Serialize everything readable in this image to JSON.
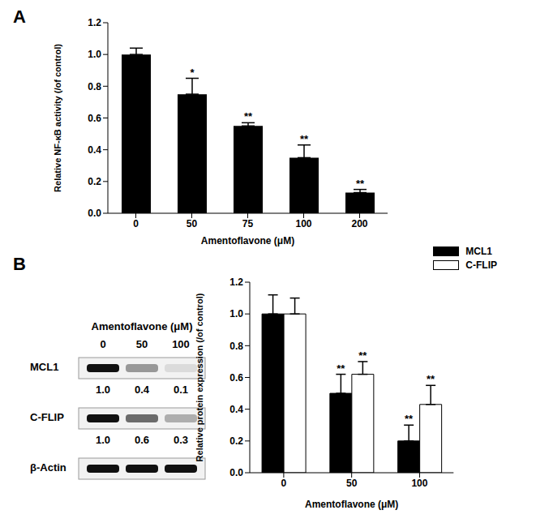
{
  "chart_data": [
    {
      "type": "bar",
      "title": "A",
      "x_label": "Amentoflavone (μM)",
      "y_label": "Relative NF-κB activity (/of control)",
      "categories": [
        "0",
        "50",
        "75",
        "100",
        "200"
      ],
      "values": [
        1.0,
        0.75,
        0.55,
        0.35,
        0.13
      ],
      "errors": [
        0.04,
        0.1,
        0.02,
        0.08,
        0.02
      ],
      "significance": [
        null,
        "*",
        "**",
        "**",
        "**"
      ],
      "color": "#000000",
      "ylim": [
        0,
        1.2
      ],
      "yticks": [
        {
          "value": 0,
          "label": "0.0"
        },
        {
          "value": 0.2,
          "label": "0.2"
        },
        {
          "value": 0.4,
          "label": "0.4"
        },
        {
          "value": 0.6,
          "label": "0.6"
        },
        {
          "value": 0.8,
          "label": "0.8"
        },
        {
          "value": 1.0,
          "label": "1.0"
        },
        {
          "value": 1.2,
          "label": "1.2"
        }
      ]
    },
    {
      "type": "bar",
      "title": "B",
      "x_label": "Amentoflavone (μM)",
      "y_label": "Relative protein expression (/of control)",
      "categories": [
        "0",
        "50",
        "100"
      ],
      "series": [
        {
          "name": "MCL1",
          "color": "#000000",
          "values": [
            1.0,
            0.5,
            0.2
          ],
          "errors": [
            0.12,
            0.12,
            0.1
          ],
          "significance": [
            null,
            "**",
            "**"
          ]
        },
        {
          "name": "C-FLIP",
          "color": "#ffffff",
          "values": [
            1.0,
            0.62,
            0.43
          ],
          "errors": [
            0.1,
            0.08,
            0.12
          ],
          "significance": [
            null,
            "**",
            "**"
          ]
        }
      ],
      "legend": "upper right",
      "ylim": [
        0,
        1.2
      ],
      "yticks": [
        {
          "value": 0,
          "label": "0.0"
        },
        {
          "value": 0.2,
          "label": "0.2"
        },
        {
          "value": 0.4,
          "label": "0.4"
        },
        {
          "value": 0.6,
          "label": "0.6"
        },
        {
          "value": 0.8,
          "label": "0.8"
        },
        {
          "value": 1.0,
          "label": "1.0"
        },
        {
          "value": 1.2,
          "label": "1.2"
        }
      ]
    }
  ],
  "blot": {
    "header": "Amentoflavone (μM)",
    "lanes": [
      "0",
      "50",
      "100"
    ],
    "rows": [
      {
        "name": "MCL1",
        "quantification": [
          "1.0",
          "0.4",
          "0.1"
        ]
      },
      {
        "name": "C-FLIP",
        "quantification": [
          "1.0",
          "0.6",
          "0.3"
        ]
      },
      {
        "name": "β-Actin"
      }
    ]
  }
}
